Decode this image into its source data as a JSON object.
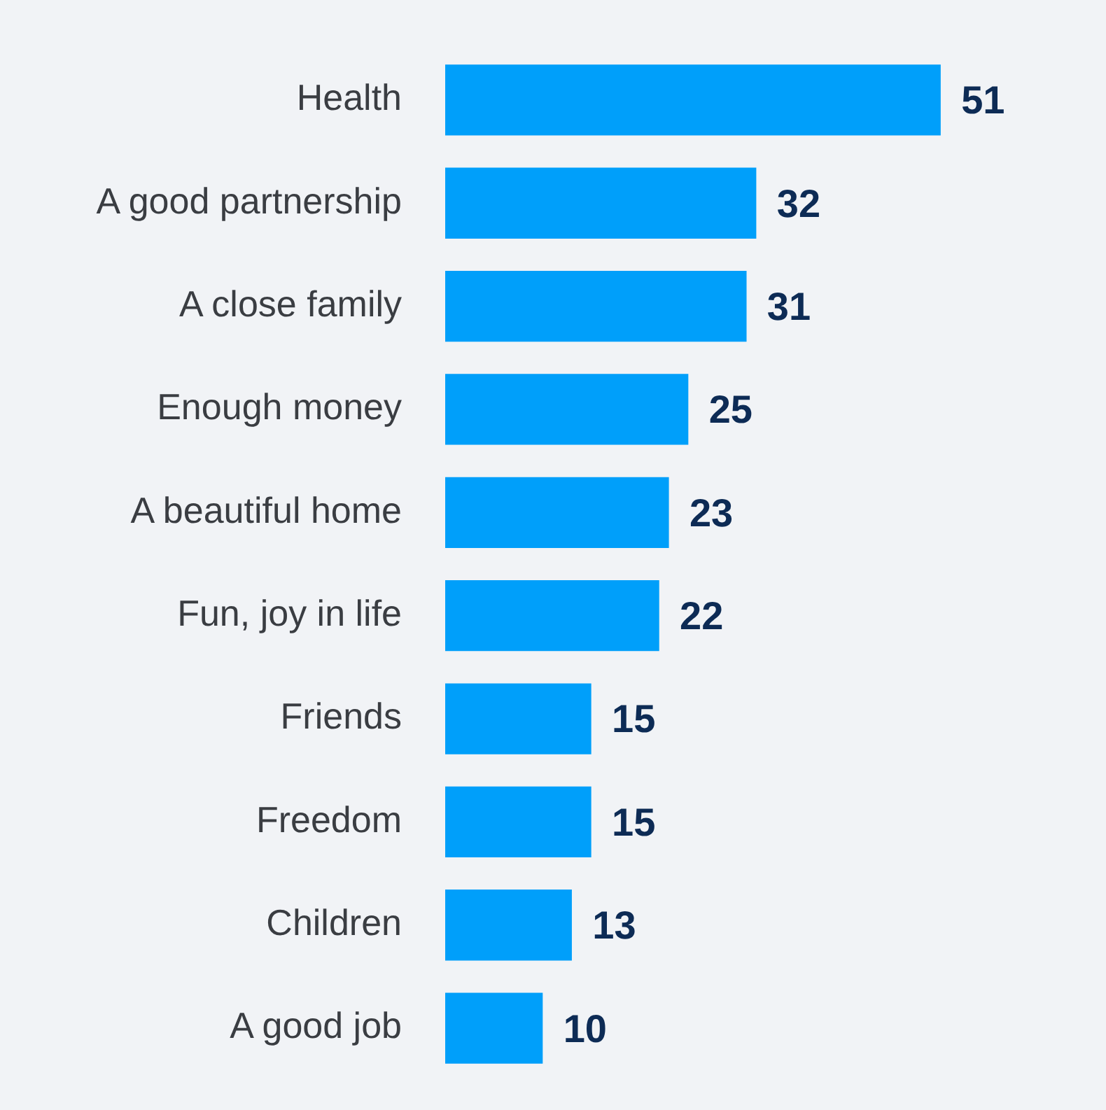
{
  "chart_data": {
    "type": "bar",
    "orientation": "horizontal",
    "categories": [
      "Health",
      "A good partnership",
      "A close family",
      "Enough money",
      "A beautiful home",
      "Fun, joy in life",
      "Friends",
      "Freedom",
      "Children",
      "A good job"
    ],
    "values": [
      51,
      32,
      31,
      25,
      23,
      22,
      15,
      15,
      13,
      10
    ],
    "color": "#009ffa",
    "data_labels": true
  }
}
